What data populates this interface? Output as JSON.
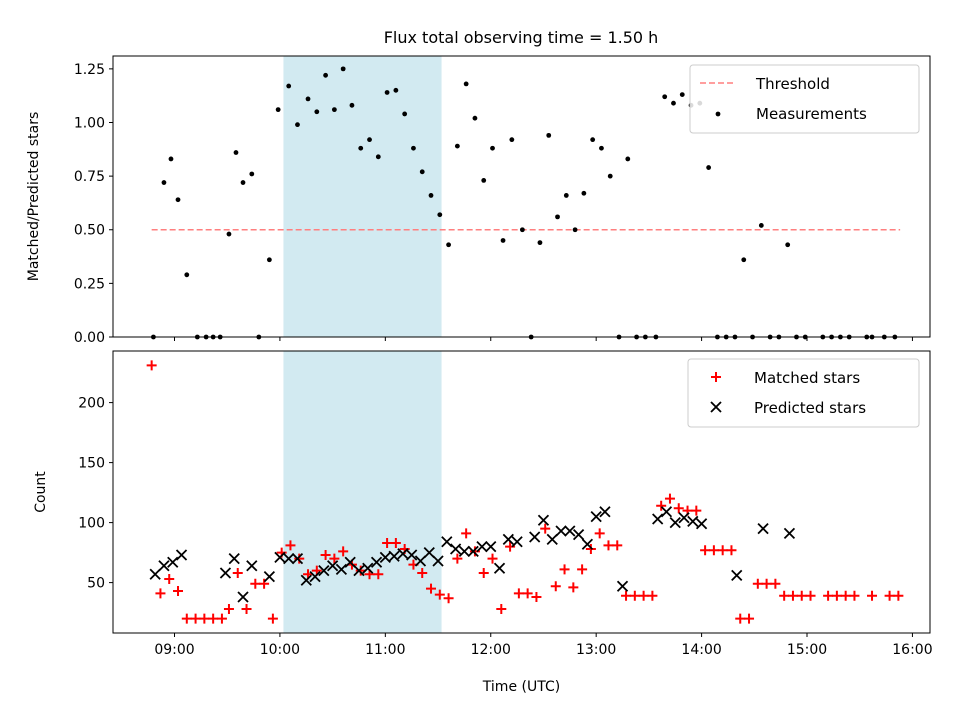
{
  "title": "Flux total observing time = 1.50 h",
  "colors": {
    "shade": "#add8e6",
    "threshold": "#ff7f7f",
    "measurement": "#000000",
    "matched": "#ff0000",
    "predicted": "#000000"
  },
  "chart_data": [
    {
      "type": "scatter",
      "name": "ratio-panel",
      "ylabel": "Matched/Predicted stars",
      "xlim": [
        "08:25",
        "16:10"
      ],
      "ylim": [
        0,
        1.31
      ],
      "yticks": [
        "0.00",
        "0.25",
        "0.50",
        "0.75",
        "1.00",
        "1.25"
      ],
      "xticks": [
        "09:00",
        "10:00",
        "11:00",
        "12:00",
        "13:00",
        "14:00",
        "15:00",
        "16:00"
      ],
      "highlight_span": [
        "10:02",
        "11:32"
      ],
      "threshold": {
        "label": "Threshold",
        "value": 0.5,
        "x_range": [
          "08:47",
          "15:53"
        ]
      },
      "legend": {
        "position": "top-right",
        "entries": [
          "Threshold",
          "Measurements"
        ]
      },
      "series": [
        {
          "name": "Measurements",
          "marker": "dot",
          "points": [
            [
              "08:48",
              0.0
            ],
            [
              "08:54",
              0.72
            ],
            [
              "08:58",
              0.83
            ],
            [
              "09:02",
              0.64
            ],
            [
              "09:07",
              0.29
            ],
            [
              "09:13",
              0.0
            ],
            [
              "09:18",
              0.0
            ],
            [
              "09:22",
              0.0
            ],
            [
              "09:26",
              0.0
            ],
            [
              "09:31",
              0.48
            ],
            [
              "09:35",
              0.86
            ],
            [
              "09:39",
              0.72
            ],
            [
              "09:44",
              0.76
            ],
            [
              "09:48",
              0.0
            ],
            [
              "09:54",
              0.36
            ],
            [
              "09:59",
              1.06
            ],
            [
              "10:05",
              1.17
            ],
            [
              "10:10",
              0.99
            ],
            [
              "10:16",
              1.11
            ],
            [
              "10:21",
              1.05
            ],
            [
              "10:26",
              1.22
            ],
            [
              "10:31",
              1.06
            ],
            [
              "10:36",
              1.25
            ],
            [
              "10:41",
              1.08
            ],
            [
              "10:46",
              0.88
            ],
            [
              "10:51",
              0.92
            ],
            [
              "10:56",
              0.84
            ],
            [
              "11:01",
              1.14
            ],
            [
              "11:06",
              1.15
            ],
            [
              "11:11",
              1.04
            ],
            [
              "11:16",
              0.88
            ],
            [
              "11:21",
              0.77
            ],
            [
              "11:26",
              0.66
            ],
            [
              "11:31",
              0.57
            ],
            [
              "11:36",
              0.43
            ],
            [
              "11:41",
              0.89
            ],
            [
              "11:46",
              1.18
            ],
            [
              "11:51",
              1.02
            ],
            [
              "11:56",
              0.73
            ],
            [
              "12:01",
              0.88
            ],
            [
              "12:07",
              0.45
            ],
            [
              "12:12",
              0.92
            ],
            [
              "12:18",
              0.5
            ],
            [
              "12:23",
              0.0
            ],
            [
              "12:28",
              0.44
            ],
            [
              "12:33",
              0.94
            ],
            [
              "12:38",
              0.56
            ],
            [
              "12:43",
              0.66
            ],
            [
              "12:48",
              0.5
            ],
            [
              "12:53",
              0.67
            ],
            [
              "12:58",
              0.92
            ],
            [
              "13:03",
              0.88
            ],
            [
              "13:08",
              0.75
            ],
            [
              "13:13",
              0.0
            ],
            [
              "13:18",
              0.83
            ],
            [
              "13:23",
              0.0
            ],
            [
              "13:28",
              0.0
            ],
            [
              "13:34",
              0.0
            ],
            [
              "13:39",
              1.12
            ],
            [
              "13:44",
              1.09
            ],
            [
              "13:49",
              1.13
            ],
            [
              "13:54",
              1.08
            ],
            [
              "13:59",
              1.09
            ],
            [
              "14:04",
              0.79
            ],
            [
              "14:09",
              0.0
            ],
            [
              "14:14",
              0.0
            ],
            [
              "14:19",
              0.0
            ],
            [
              "14:24",
              0.36
            ],
            [
              "14:29",
              0.0
            ],
            [
              "14:34",
              0.52
            ],
            [
              "14:39",
              0.0
            ],
            [
              "14:44",
              0.0
            ],
            [
              "14:49",
              0.43
            ],
            [
              "14:54",
              0.0
            ],
            [
              "14:59",
              0.0
            ],
            [
              "15:09",
              0.0
            ],
            [
              "15:14",
              0.0
            ],
            [
              "15:19",
              0.0
            ],
            [
              "15:24",
              0.0
            ],
            [
              "15:34",
              0.0
            ],
            [
              "15:37",
              0.0
            ],
            [
              "15:44",
              0.0
            ],
            [
              "15:50",
              0.0
            ]
          ]
        }
      ]
    },
    {
      "type": "scatter",
      "name": "count-panel",
      "xlabel": "Time (UTC)",
      "ylabel": "Count",
      "xlim": [
        "08:25",
        "16:10"
      ],
      "ylim": [
        8,
        243
      ],
      "yticks": [
        "50",
        "100",
        "150",
        "200"
      ],
      "xticks": [
        "09:00",
        "10:00",
        "11:00",
        "12:00",
        "13:00",
        "14:00",
        "15:00",
        "16:00"
      ],
      "highlight_span": [
        "10:02",
        "11:32"
      ],
      "legend": {
        "position": "top-right",
        "entries": [
          "Matched stars",
          "Predicted stars"
        ]
      },
      "series": [
        {
          "name": "Matched stars",
          "marker": "plus",
          "points": [
            [
              "08:47",
              231
            ],
            [
              "08:52",
              41
            ],
            [
              "08:57",
              53
            ],
            [
              "09:02",
              43
            ],
            [
              "09:07",
              20
            ],
            [
              "09:12",
              20
            ],
            [
              "09:17",
              20
            ],
            [
              "09:22",
              20
            ],
            [
              "09:27",
              20
            ],
            [
              "09:31",
              28
            ],
            [
              "09:36",
              58
            ],
            [
              "09:41",
              28
            ],
            [
              "09:46",
              49
            ],
            [
              "09:51",
              49
            ],
            [
              "09:56",
              20
            ],
            [
              "10:01",
              75
            ],
            [
              "10:06",
              81
            ],
            [
              "10:11",
              70
            ],
            [
              "10:16",
              57
            ],
            [
              "10:21",
              60
            ],
            [
              "10:26",
              73
            ],
            [
              "10:31",
              70
            ],
            [
              "10:36",
              76
            ],
            [
              "10:41",
              65
            ],
            [
              "10:46",
              60
            ],
            [
              "10:51",
              57
            ],
            [
              "10:56",
              57
            ],
            [
              "11:01",
              83
            ],
            [
              "11:06",
              83
            ],
            [
              "11:11",
              78
            ],
            [
              "11:16",
              65
            ],
            [
              "11:21",
              58
            ],
            [
              "11:26",
              45
            ],
            [
              "11:31",
              40
            ],
            [
              "11:36",
              37
            ],
            [
              "11:41",
              70
            ],
            [
              "11:46",
              91
            ],
            [
              "11:51",
              76
            ],
            [
              "11:56",
              58
            ],
            [
              "12:01",
              70
            ],
            [
              "12:06",
              28
            ],
            [
              "12:11",
              80
            ],
            [
              "12:16",
              41
            ],
            [
              "12:21",
              41
            ],
            [
              "12:26",
              38
            ],
            [
              "12:31",
              95
            ],
            [
              "12:37",
              47
            ],
            [
              "12:42",
              61
            ],
            [
              "12:47",
              46
            ],
            [
              "12:52",
              61
            ],
            [
              "12:57",
              78
            ],
            [
              "13:02",
              91
            ],
            [
              "13:07",
              81
            ],
            [
              "13:12",
              81
            ],
            [
              "13:17",
              39
            ],
            [
              "13:22",
              39
            ],
            [
              "13:27",
              39
            ],
            [
              "13:32",
              39
            ],
            [
              "13:37",
              114
            ],
            [
              "13:42",
              120
            ],
            [
              "13:47",
              112
            ],
            [
              "13:52",
              110
            ],
            [
              "13:57",
              110
            ],
            [
              "14:02",
              77
            ],
            [
              "14:07",
              77
            ],
            [
              "14:12",
              77
            ],
            [
              "14:17",
              77
            ],
            [
              "14:22",
              20
            ],
            [
              "14:27",
              20
            ],
            [
              "14:32",
              49
            ],
            [
              "14:37",
              49
            ],
            [
              "14:42",
              49
            ],
            [
              "14:47",
              39
            ],
            [
              "14:52",
              39
            ],
            [
              "14:57",
              39
            ],
            [
              "15:02",
              39
            ],
            [
              "15:12",
              39
            ],
            [
              "15:17",
              39
            ],
            [
              "15:22",
              39
            ],
            [
              "15:27",
              39
            ],
            [
              "15:37",
              39
            ],
            [
              "15:47",
              39
            ],
            [
              "15:52",
              39
            ]
          ]
        },
        {
          "name": "Predicted stars",
          "marker": "x",
          "points": [
            [
              "08:49",
              57
            ],
            [
              "08:54",
              64
            ],
            [
              "08:59",
              67
            ],
            [
              "09:04",
              73
            ],
            [
              "09:29",
              58
            ],
            [
              "09:34",
              70
            ],
            [
              "09:39",
              38
            ],
            [
              "09:44",
              64
            ],
            [
              "09:54",
              55
            ],
            [
              "10:00",
              71
            ],
            [
              "10:05",
              70
            ],
            [
              "10:10",
              70
            ],
            [
              "10:15",
              52
            ],
            [
              "10:20",
              55
            ],
            [
              "10:25",
              60
            ],
            [
              "10:30",
              64
            ],
            [
              "10:35",
              61
            ],
            [
              "10:40",
              67
            ],
            [
              "10:45",
              60
            ],
            [
              "10:50",
              62
            ],
            [
              "10:55",
              67
            ],
            [
              "11:00",
              71
            ],
            [
              "11:05",
              72
            ],
            [
              "11:10",
              74
            ],
            [
              "11:15",
              73
            ],
            [
              "11:20",
              68
            ],
            [
              "11:25",
              75
            ],
            [
              "11:30",
              68
            ],
            [
              "11:35",
              84
            ],
            [
              "11:40",
              78
            ],
            [
              "11:45",
              76
            ],
            [
              "11:50",
              76
            ],
            [
              "11:55",
              80
            ],
            [
              "12:00",
              80
            ],
            [
              "12:05",
              62
            ],
            [
              "12:10",
              86
            ],
            [
              "12:15",
              84
            ],
            [
              "12:25",
              88
            ],
            [
              "12:30",
              102
            ],
            [
              "12:35",
              86
            ],
            [
              "12:40",
              93
            ],
            [
              "12:45",
              93
            ],
            [
              "12:50",
              90
            ],
            [
              "12:55",
              82
            ],
            [
              "13:00",
              105
            ],
            [
              "13:05",
              109
            ],
            [
              "13:15",
              47
            ],
            [
              "13:35",
              103
            ],
            [
              "13:40",
              109
            ],
            [
              "13:45",
              100
            ],
            [
              "13:50",
              104
            ],
            [
              "13:55",
              101
            ],
            [
              "14:00",
              99
            ],
            [
              "14:20",
              56
            ],
            [
              "14:35",
              95
            ],
            [
              "14:50",
              91
            ]
          ]
        }
      ]
    }
  ]
}
